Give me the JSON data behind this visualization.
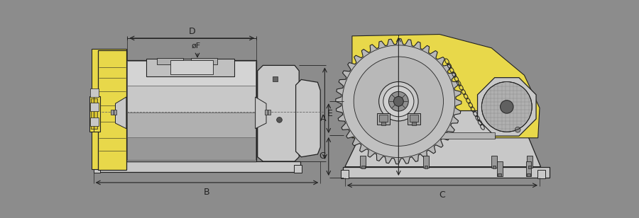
{
  "bg_color": "#8c8c8c",
  "yellow": "#e8d84a",
  "light_gray": "#c8c8c8",
  "mid_gray": "#aaaaaa",
  "dark_gray": "#555555",
  "line_color": "#222222",
  "white": "#ffffff",
  "labels": {
    "D": "D",
    "F": "øF",
    "B": "B",
    "E": "E",
    "A": "A",
    "G": "G",
    "C": "C"
  }
}
